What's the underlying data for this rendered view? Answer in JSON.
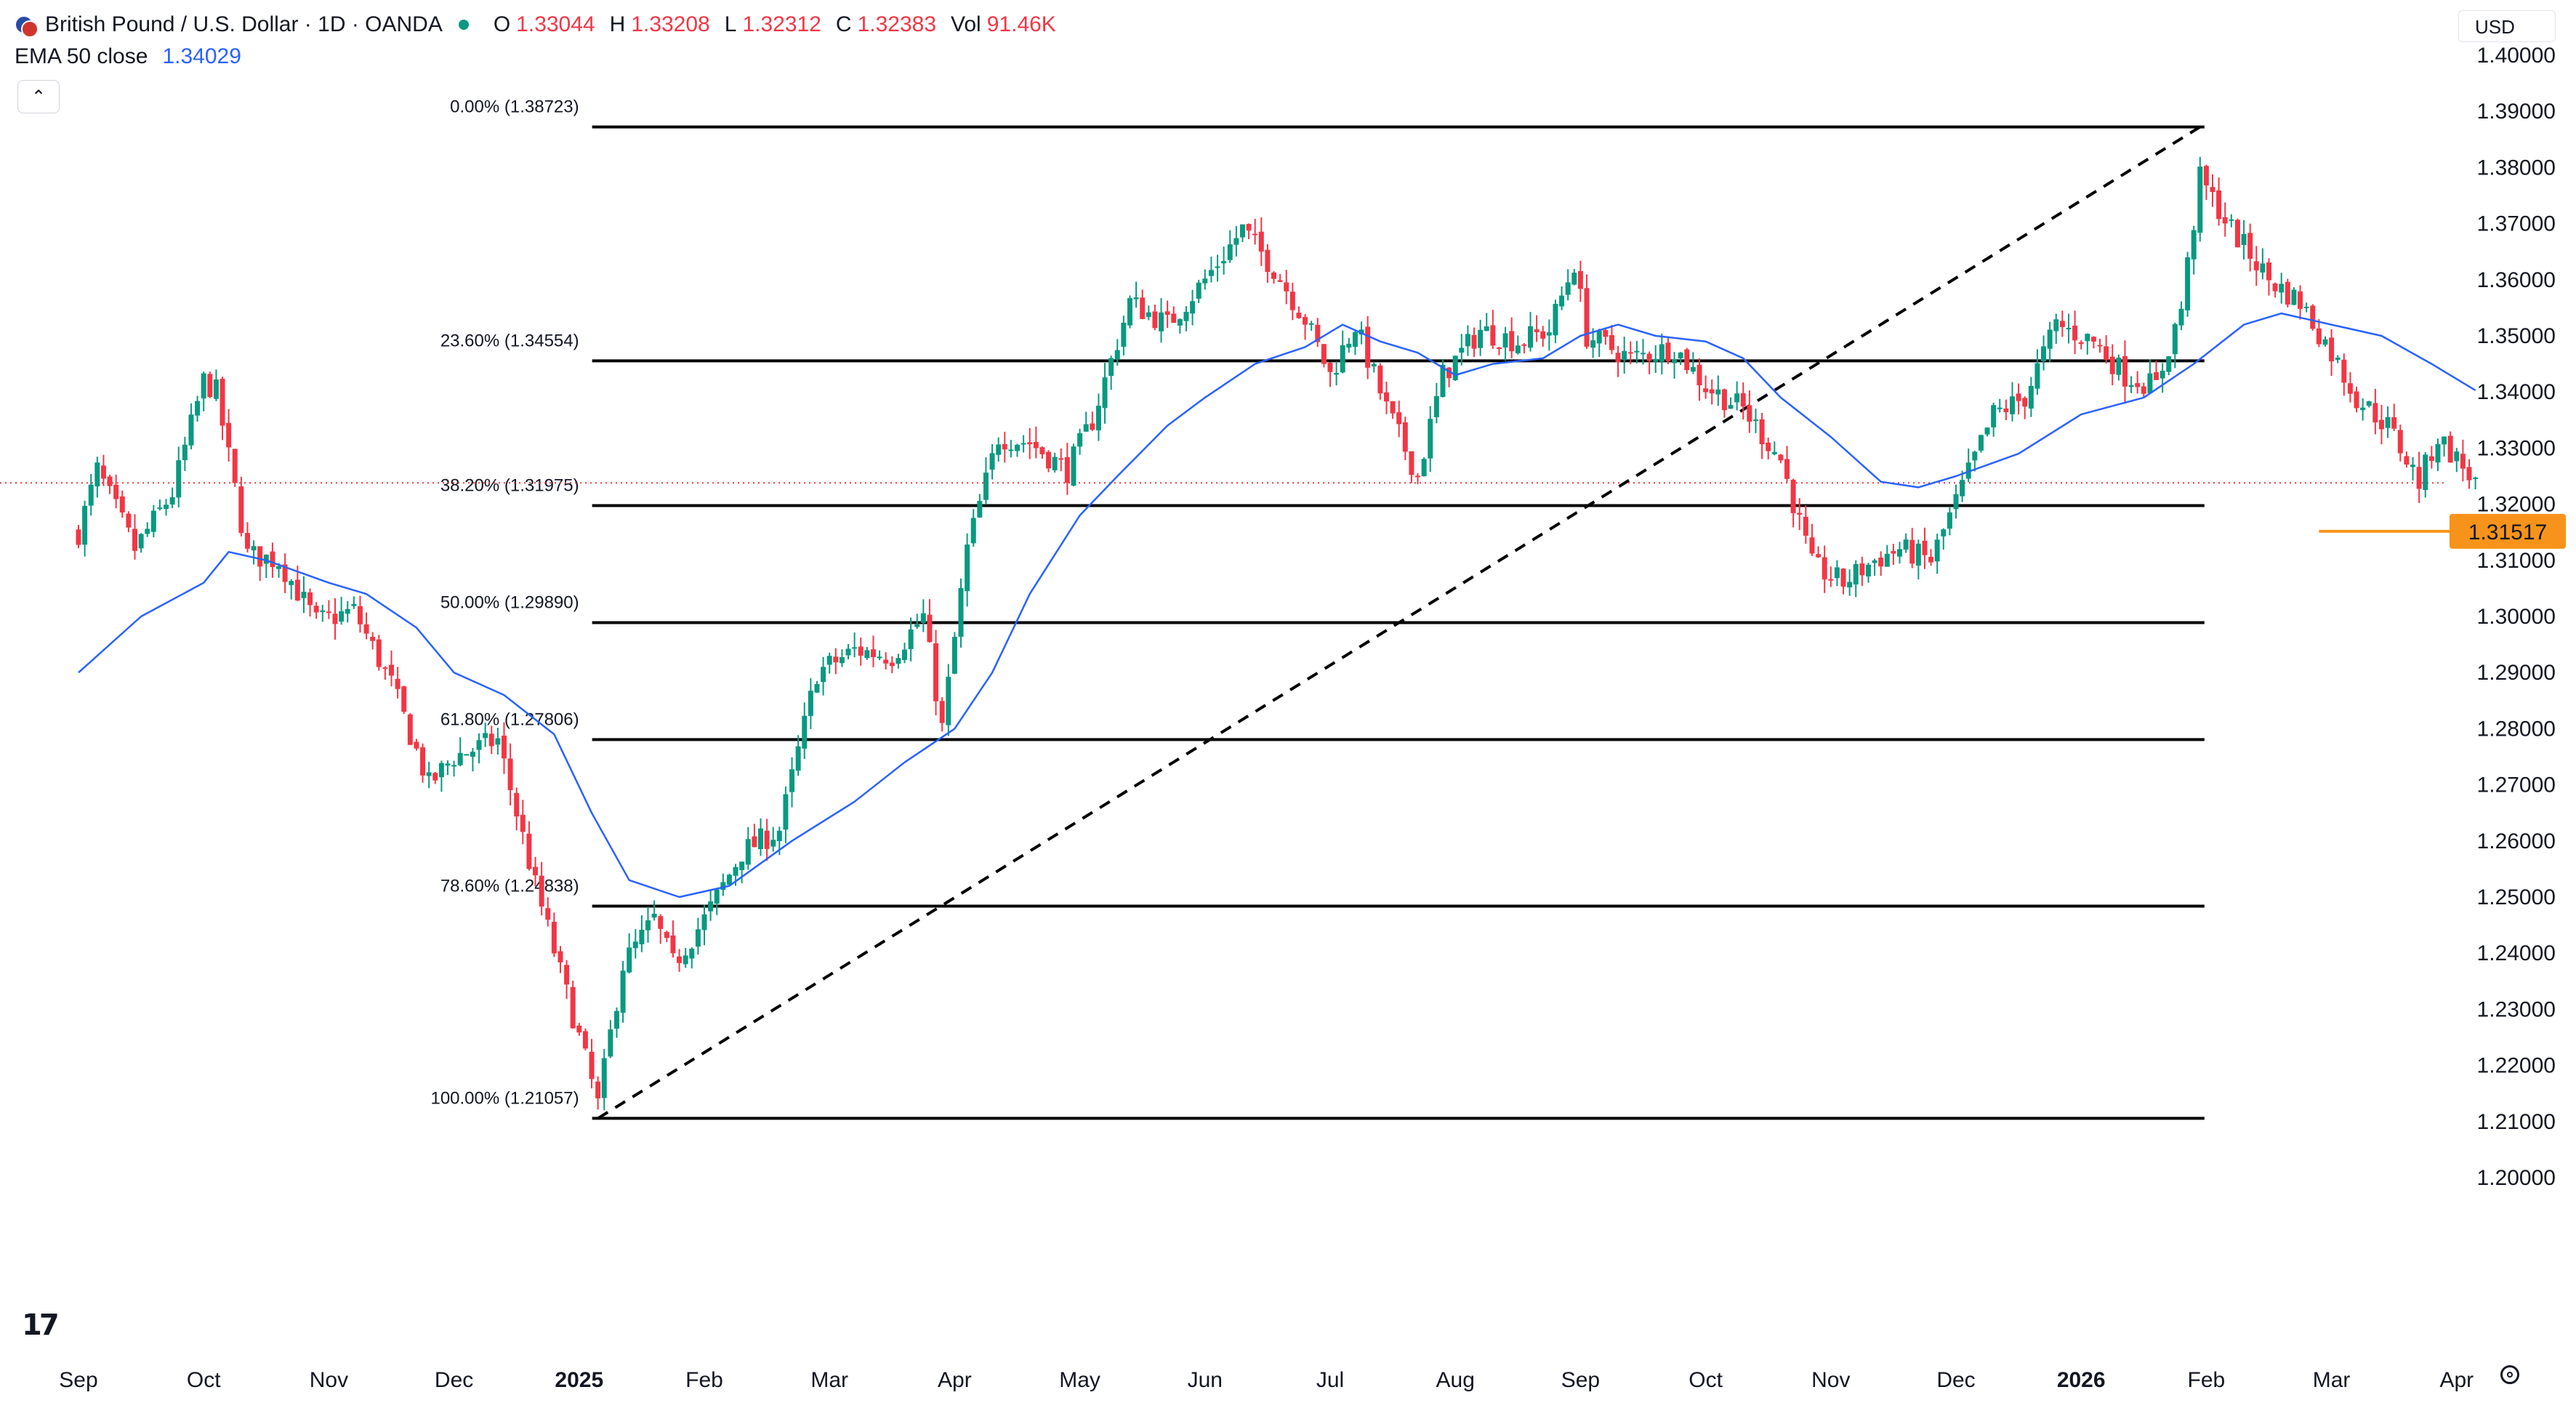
{
  "header": {
    "symbol": "British Pound / U.S. Dollar · 1D · OANDA",
    "ohlc": {
      "o_key": "O",
      "o": "1.33044",
      "h_key": "H",
      "h": "1.33208",
      "l_key": "L",
      "l": "1.32312",
      "c_key": "C",
      "c": "1.32383",
      "vol_key": "Vol",
      "vol": "91.46K"
    },
    "ema_label": "EMA 50 close",
    "ema_value": "1.34029",
    "collapse_icon": "chevron-up-icon"
  },
  "currency_button": "USD",
  "logo": "17",
  "colors": {
    "up": "#089981",
    "down": "#f23645",
    "ema": "#2962ff",
    "fib": "#000000",
    "price_tag": "#f7931a",
    "current_price_line": "#f23645"
  },
  "chart_data": {
    "type": "candlestick",
    "title": "British Pound / U.S. Dollar · 1D · OANDA",
    "ylim": [
      1.19,
      1.405
    ],
    "y_ticks": [
      "1.40000",
      "1.39000",
      "1.38000",
      "1.37000",
      "1.36000",
      "1.35000",
      "1.34000",
      "1.33000",
      "1.32000",
      "1.31000",
      "1.30000",
      "1.29000",
      "1.28000",
      "1.27000",
      "1.26000",
      "1.25000",
      "1.24000",
      "1.23000",
      "1.22000",
      "1.21000",
      "1.20000"
    ],
    "x_labels": [
      {
        "label": "Sep",
        "month": 0,
        "bold": false
      },
      {
        "label": "Oct",
        "month": 1,
        "bold": false
      },
      {
        "label": "Nov",
        "month": 2,
        "bold": false
      },
      {
        "label": "Dec",
        "month": 3,
        "bold": false
      },
      {
        "label": "2025",
        "month": 4,
        "bold": true
      },
      {
        "label": "Feb",
        "month": 5,
        "bold": false
      },
      {
        "label": "Mar",
        "month": 6,
        "bold": false
      },
      {
        "label": "Apr",
        "month": 7,
        "bold": false
      },
      {
        "label": "May",
        "month": 8,
        "bold": false
      },
      {
        "label": "Jun",
        "month": 9,
        "bold": false
      },
      {
        "label": "Jul",
        "month": 10,
        "bold": false
      },
      {
        "label": "Aug",
        "month": 11,
        "bold": false
      },
      {
        "label": "Sep",
        "month": 12,
        "bold": false
      },
      {
        "label": "Oct",
        "month": 13,
        "bold": false
      },
      {
        "label": "Nov",
        "month": 14,
        "bold": false
      },
      {
        "label": "Dec",
        "month": 15,
        "bold": false
      },
      {
        "label": "2026",
        "month": 16,
        "bold": true
      },
      {
        "label": "Feb",
        "month": 17,
        "bold": false
      },
      {
        "label": "Mar",
        "month": 18,
        "bold": false
      },
      {
        "label": "Apr",
        "month": 19,
        "bold": false
      }
    ],
    "price_path": [
      [
        0.0,
        1.315
      ],
      [
        0.15,
        1.326
      ],
      [
        0.45,
        1.312
      ],
      [
        0.75,
        1.322
      ],
      [
        1.0,
        1.342
      ],
      [
        1.1,
        1.34
      ],
      [
        1.35,
        1.311
      ],
      [
        1.6,
        1.31
      ],
      [
        1.9,
        1.299
      ],
      [
        2.2,
        1.301
      ],
      [
        2.5,
        1.288
      ],
      [
        2.8,
        1.27
      ],
      [
        3.0,
        1.275
      ],
      [
        3.35,
        1.278
      ],
      [
        3.65,
        1.252
      ],
      [
        4.0,
        1.225
      ],
      [
        4.15,
        1.213
      ],
      [
        4.35,
        1.238
      ],
      [
        4.6,
        1.246
      ],
      [
        4.75,
        1.238
      ],
      [
        5.0,
        1.246
      ],
      [
        5.3,
        1.258
      ],
      [
        5.6,
        1.262
      ],
      [
        5.9,
        1.29
      ],
      [
        6.2,
        1.294
      ],
      [
        6.5,
        1.293
      ],
      [
        6.75,
        1.3
      ],
      [
        6.9,
        1.28
      ],
      [
        7.1,
        1.312
      ],
      [
        7.35,
        1.332
      ],
      [
        7.6,
        1.331
      ],
      [
        7.9,
        1.326
      ],
      [
        8.1,
        1.335
      ],
      [
        8.4,
        1.356
      ],
      [
        8.7,
        1.352
      ],
      [
        9.0,
        1.36
      ],
      [
        9.3,
        1.369
      ],
      [
        9.55,
        1.362
      ],
      [
        9.8,
        1.353
      ],
      [
        10.0,
        1.343
      ],
      [
        10.2,
        1.352
      ],
      [
        10.45,
        1.337
      ],
      [
        10.7,
        1.325
      ],
      [
        10.9,
        1.343
      ],
      [
        11.2,
        1.351
      ],
      [
        11.5,
        1.349
      ],
      [
        11.75,
        1.351
      ],
      [
        11.95,
        1.363
      ],
      [
        12.05,
        1.35
      ],
      [
        12.4,
        1.346
      ],
      [
        12.75,
        1.348
      ],
      [
        13.0,
        1.341
      ],
      [
        13.3,
        1.337
      ],
      [
        13.6,
        1.328
      ],
      [
        13.85,
        1.309
      ],
      [
        14.1,
        1.306
      ],
      [
        14.35,
        1.31
      ],
      [
        14.55,
        1.312
      ],
      [
        14.8,
        1.31
      ],
      [
        15.05,
        1.323
      ],
      [
        15.3,
        1.336
      ],
      [
        15.55,
        1.339
      ],
      [
        15.8,
        1.352
      ],
      [
        16.1,
        1.349
      ],
      [
        16.35,
        1.343
      ],
      [
        16.6,
        1.341
      ],
      [
        16.8,
        1.355
      ],
      [
        16.95,
        1.378
      ],
      [
        17.2,
        1.369
      ],
      [
        17.5,
        1.36
      ],
      [
        17.75,
        1.356
      ],
      [
        18.0,
        1.347
      ],
      [
        18.2,
        1.339
      ],
      [
        18.45,
        1.334
      ],
      [
        18.7,
        1.324
      ],
      [
        18.85,
        1.332
      ],
      [
        19.0,
        1.328
      ],
      [
        19.15,
        1.3238
      ]
    ],
    "ema50": [
      [
        0.0,
        1.29
      ],
      [
        0.5,
        1.3
      ],
      [
        1.0,
        1.306
      ],
      [
        1.2,
        1.3115
      ],
      [
        1.5,
        1.31
      ],
      [
        2.0,
        1.306
      ],
      [
        2.3,
        1.304
      ],
      [
        2.7,
        1.298
      ],
      [
        3.0,
        1.29
      ],
      [
        3.4,
        1.286
      ],
      [
        3.8,
        1.279
      ],
      [
        4.1,
        1.265
      ],
      [
        4.4,
        1.253
      ],
      [
        4.8,
        1.25
      ],
      [
        5.2,
        1.252
      ],
      [
        5.7,
        1.26
      ],
      [
        6.2,
        1.267
      ],
      [
        6.6,
        1.274
      ],
      [
        7.0,
        1.28
      ],
      [
        7.3,
        1.29
      ],
      [
        7.6,
        1.304
      ],
      [
        8.0,
        1.318
      ],
      [
        8.3,
        1.325
      ],
      [
        8.7,
        1.334
      ],
      [
        9.0,
        1.339
      ],
      [
        9.4,
        1.345
      ],
      [
        9.8,
        1.348
      ],
      [
        10.1,
        1.352
      ],
      [
        10.4,
        1.349
      ],
      [
        10.7,
        1.347
      ],
      [
        11.0,
        1.343
      ],
      [
        11.3,
        1.345
      ],
      [
        11.7,
        1.346
      ],
      [
        12.0,
        1.35
      ],
      [
        12.3,
        1.352
      ],
      [
        12.6,
        1.35
      ],
      [
        13.0,
        1.349
      ],
      [
        13.3,
        1.346
      ],
      [
        13.6,
        1.339
      ],
      [
        14.0,
        1.332
      ],
      [
        14.4,
        1.324
      ],
      [
        14.7,
        1.323
      ],
      [
        15.0,
        1.325
      ],
      [
        15.5,
        1.329
      ],
      [
        16.0,
        1.336
      ],
      [
        16.5,
        1.339
      ],
      [
        16.9,
        1.345
      ],
      [
        17.3,
        1.352
      ],
      [
        17.6,
        1.354
      ],
      [
        18.0,
        1.352
      ],
      [
        18.4,
        1.35
      ],
      [
        18.8,
        1.345
      ],
      [
        19.15,
        1.3403
      ]
    ],
    "fibonacci": [
      {
        "label": "0.00% (1.38723)",
        "price": 1.38723
      },
      {
        "label": "23.60% (1.34554)",
        "price": 1.34554
      },
      {
        "label": "38.20% (1.31975)",
        "price": 1.31975
      },
      {
        "label": "50.00% (1.29890)",
        "price": 1.2989
      },
      {
        "label": "61.80% (1.27806)",
        "price": 1.27806
      },
      {
        "label": "78.60% (1.24838)",
        "price": 1.24838
      },
      {
        "label": "100.00% (1.21057)",
        "price": 1.21057
      }
    ],
    "fib_range": {
      "start_month": 4.15,
      "end_month": 16.95
    },
    "trendline": {
      "from": [
        4.15,
        1.21057
      ],
      "to": [
        16.95,
        1.38723
      ]
    },
    "current_price": 1.3238,
    "price_tag": {
      "label": "1.31517",
      "value": 1.31517,
      "from_month": 17.9
    },
    "grid": false
  }
}
